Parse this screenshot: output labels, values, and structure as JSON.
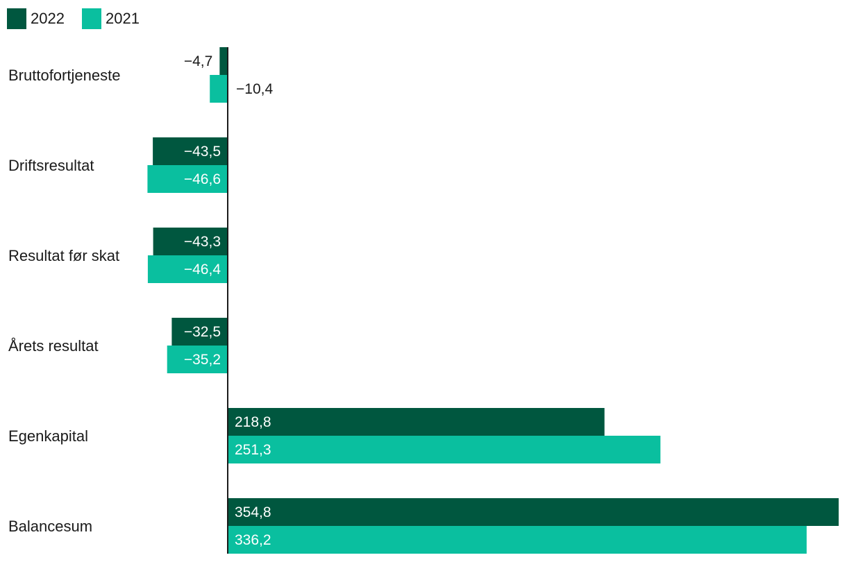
{
  "chart_data": {
    "type": "bar",
    "orientation": "horizontal",
    "categories": [
      "Bruttofortjeneste",
      "Driftsresultat",
      "Resultat før skat",
      "Årets resultat",
      "Egenkapital",
      "Balancesum"
    ],
    "series": [
      {
        "name": "2022",
        "color": "#00573f",
        "values": [
          -4.7,
          -43.5,
          -43.3,
          -32.5,
          218.8,
          354.8
        ],
        "labels": [
          "−4,7",
          "−43,5",
          "−43,3",
          "−32,5",
          "218,8",
          "354,8"
        ]
      },
      {
        "name": "2021",
        "color": "#0abf9f",
        "values": [
          -10.4,
          -46.6,
          -46.4,
          -35.2,
          251.3,
          336.2
        ],
        "labels": [
          "−10,4",
          "−46,6",
          "−46,4",
          "−35,2",
          "251,3",
          "336,2"
        ]
      }
    ],
    "legend_position": "top-left",
    "grid": false
  }
}
